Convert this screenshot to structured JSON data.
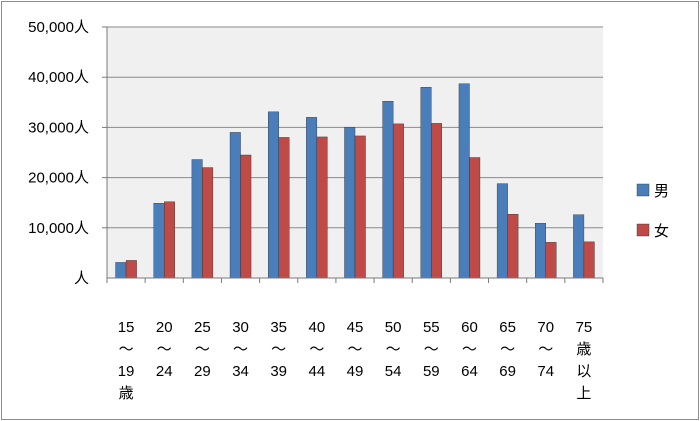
{
  "chart_data": {
    "type": "bar",
    "categories": [
      [
        "15",
        "～",
        "19",
        "歳"
      ],
      [
        "20",
        "～",
        "24"
      ],
      [
        "25",
        "～",
        "29"
      ],
      [
        "30",
        "～",
        "34"
      ],
      [
        "35",
        "～",
        "39"
      ],
      [
        "40",
        "～",
        "44"
      ],
      [
        "45",
        "～",
        "49"
      ],
      [
        "50",
        "～",
        "54"
      ],
      [
        "55",
        "～",
        "59"
      ],
      [
        "60",
        "～",
        "64"
      ],
      [
        "65",
        "～",
        "69"
      ],
      [
        "70",
        "～",
        "74"
      ],
      [
        "75",
        "歳",
        "以",
        "上"
      ]
    ],
    "series": [
      {
        "name": "男",
        "color": "#4a7ebb",
        "values": [
          3100,
          14900,
          23600,
          29000,
          33100,
          32000,
          30000,
          35200,
          38000,
          38700,
          18800,
          10900,
          12600
        ]
      },
      {
        "name": "女",
        "color": "#be4b48",
        "values": [
          3500,
          15200,
          22000,
          24500,
          28000,
          28100,
          28300,
          30700,
          30800,
          24000,
          12700,
          7100,
          7200
        ]
      }
    ],
    "ylim": [
      0,
      50000
    ],
    "yticks": [
      0,
      10000,
      20000,
      30000,
      40000,
      50000
    ],
    "ytick_labels": [
      "人",
      "10,000人",
      "20,000人",
      "30,000人",
      "40,000人",
      "50,000人"
    ],
    "grid": true,
    "legend_position": "right",
    "plot_background": "#f0f0f0"
  }
}
